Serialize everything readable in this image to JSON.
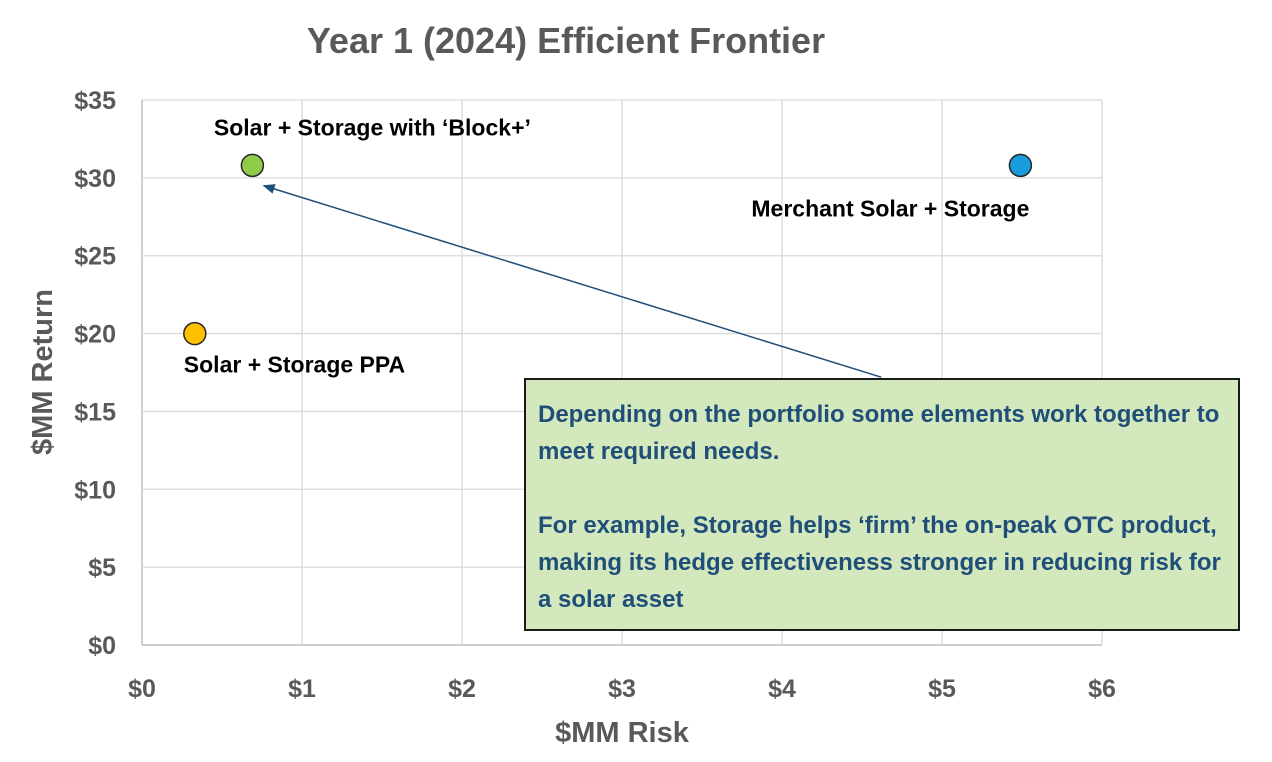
{
  "chart_data": {
    "type": "scatter",
    "title": "Year 1 (2024) Efficient Frontier",
    "xlabel": "$MM Risk",
    "ylabel": "$MM Return",
    "xlim": [
      0,
      6
    ],
    "ylim": [
      0,
      35
    ],
    "x_ticks": [
      "$0",
      "$1",
      "$2",
      "$3",
      "$4",
      "$5",
      "$6"
    ],
    "y_ticks": [
      "$0",
      "$5",
      "$10",
      "$15",
      "$20",
      "$25",
      "$30",
      "$35"
    ],
    "grid": true,
    "points": [
      {
        "label": "Solar + Storage PPA",
        "x": 0.33,
        "y": 20.0,
        "color": "#ffc000",
        "label_pos": "below-right"
      },
      {
        "label": "Solar + Storage with ‘Block+’",
        "x": 0.69,
        "y": 30.8,
        "color": "#8fcc4a",
        "label_pos": "above"
      },
      {
        "label": "Merchant Solar + Storage",
        "x": 5.49,
        "y": 30.8,
        "color": "#1a9bdc",
        "label_pos": "below"
      }
    ],
    "annotation": {
      "paragraphs": [
        "Depending on the portfolio some elements work together to meet required needs.",
        "For example, Storage helps ‘firm’ the on-peak OTC product, making its hedge effectiveness stronger in reducing risk for a solar asset"
      ],
      "arrow_from": [
        4.62,
        17.2
      ],
      "arrow_to": [
        0.76,
        29.5
      ],
      "arrow_color": "#1f4e79"
    }
  }
}
